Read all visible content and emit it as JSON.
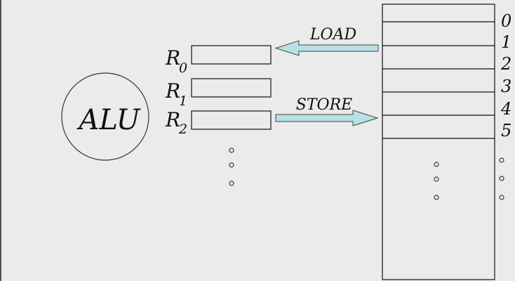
{
  "alu": {
    "label": "ALU"
  },
  "registers": [
    {
      "name": "R",
      "index": "0"
    },
    {
      "name": "R",
      "index": "1"
    },
    {
      "name": "R",
      "index": "2"
    }
  ],
  "memory": {
    "addresses": [
      "0",
      "1",
      "2",
      "3",
      "4",
      "5"
    ]
  },
  "arrows": {
    "load": "LOAD",
    "store": "STORE"
  }
}
